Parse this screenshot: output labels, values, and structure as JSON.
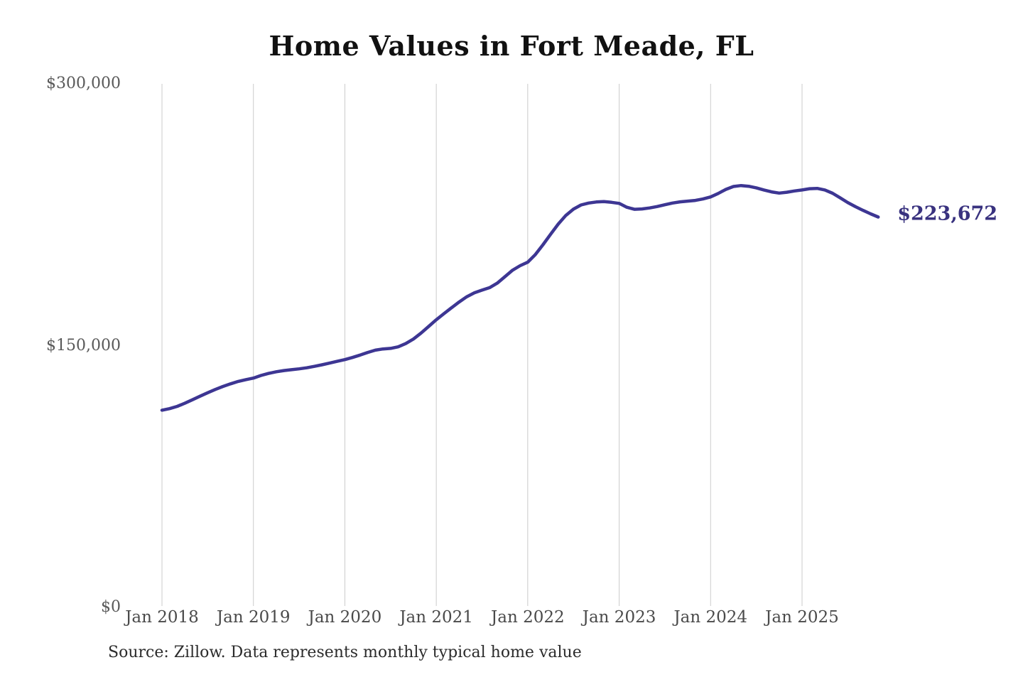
{
  "title": "Home Values in Fort Meade, FL",
  "source_note": "Source: Zillow. Data represents monthly typical home value",
  "colors": {
    "line": "#3d3693",
    "end_label": "#39327f",
    "gridline": "#cbcbcb",
    "y_axis_text": "#595959",
    "x_axis_text": "#4a4a4a",
    "title_text": "#111111",
    "source_text": "#2b2b2b",
    "background": "#ffffff"
  },
  "chart_data": {
    "type": "line",
    "title": "Home Values in Fort Meade, FL",
    "xlabel": "",
    "ylabel": "",
    "x_interval": "monthly",
    "x_start": "Jan 2018",
    "x_end": "Nov 2025",
    "x_tick_labels": [
      "Jan 2018",
      "Jan 2019",
      "Jan 2020",
      "Jan 2021",
      "Jan 2022",
      "Jan 2023",
      "Jan 2024",
      "Jan 2025"
    ],
    "y_ticks": [
      {
        "value": 0,
        "label": "$0"
      },
      {
        "value": 150000,
        "label": "$150,000"
      },
      {
        "value": 300000,
        "label": "$300,000"
      }
    ],
    "ylim": [
      0,
      300000
    ],
    "grid": "vertical-only",
    "legend": "none",
    "end_label": "$223,672",
    "end_value": 223672,
    "series": [
      {
        "name": "Typical home value",
        "values": [
          113000,
          113900,
          115200,
          117000,
          119000,
          121000,
          123000,
          124900,
          126600,
          128100,
          129500,
          130500,
          131400,
          132900,
          134100,
          135000,
          135700,
          136200,
          136700,
          137300,
          138100,
          139000,
          140000,
          141000,
          142000,
          143200,
          144600,
          146100,
          147400,
          148100,
          148400,
          149300,
          151200,
          153800,
          157200,
          161000,
          164800,
          168300,
          171700,
          175000,
          178000,
          180300,
          181800,
          183200,
          185800,
          189500,
          193200,
          195800,
          197800,
          202200,
          207800,
          213800,
          219600,
          224600,
          228200,
          230600,
          231700,
          232300,
          232500,
          232100,
          231500,
          229300,
          228100,
          228300,
          228900,
          229700,
          230700,
          231700,
          232400,
          232800,
          233200,
          234000,
          235200,
          237200,
          239500,
          241200,
          241700,
          241300,
          240400,
          239200,
          238100,
          237400,
          237900,
          238600,
          239200,
          239900,
          240100,
          239200,
          237300,
          234700,
          232000,
          229600,
          227500,
          225500,
          223672
        ]
      }
    ]
  }
}
